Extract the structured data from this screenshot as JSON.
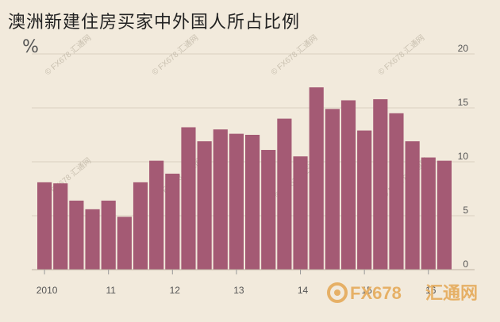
{
  "chart_data": {
    "type": "bar",
    "title": "澳洲新建住房买家中外国人所占比例",
    "ylabel": "%",
    "ylim": [
      0,
      20
    ],
    "yticks": [
      "0",
      "5",
      "10",
      "15",
      "20"
    ],
    "xtick_labels": [
      {
        "label": "2010",
        "index": 0.5
      },
      {
        "label": "11",
        "index": 4.5
      },
      {
        "label": "12",
        "index": 8.5
      },
      {
        "label": "13",
        "index": 12.5
      },
      {
        "label": "14",
        "index": 16.5
      },
      {
        "label": "15",
        "index": 20.5
      },
      {
        "label": "16",
        "index": 24.5
      }
    ],
    "values": [
      8.1,
      8.0,
      6.4,
      5.6,
      6.4,
      4.9,
      8.1,
      10.1,
      8.9,
      13.2,
      11.9,
      13.0,
      12.6,
      12.5,
      11.1,
      14.0,
      10.5,
      16.9,
      14.9,
      15.7,
      12.9,
      15.8,
      14.5,
      11.9,
      10.4,
      10.1
    ],
    "bar_color": "#a45a74",
    "grid": true
  },
  "watermark": "© FX678 汇通网",
  "logo": {
    "fx": "FX678",
    "cn": "汇通网"
  }
}
